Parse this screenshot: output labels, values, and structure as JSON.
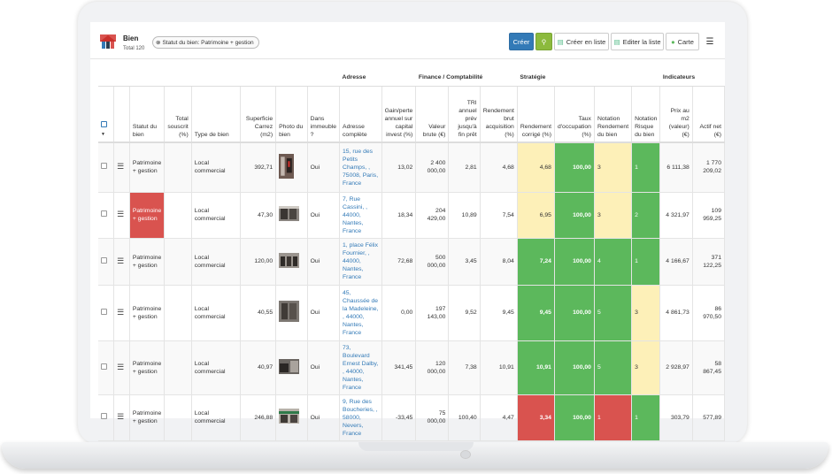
{
  "header": {
    "title": "Bien",
    "subtitle": "Total 120",
    "filter_chip": "Statut du bien: Patrimoine + gestion"
  },
  "toolbar": {
    "create_label": "Créer",
    "create_list_label": "Créer en liste",
    "edit_list_label": "Editer la liste",
    "map_label": "Carte"
  },
  "groups": {
    "address": "Adresse",
    "finance": "Finance / Comptabilité",
    "strategy": "Stratégie",
    "indicators": "Indicateurs"
  },
  "columns": {
    "status": "Statut du bien",
    "total_subscribed": "Total souscrit (%)",
    "type": "Type de bien",
    "area": "Superficie Carrez (m2)",
    "photo": "Photo du bien",
    "in_building": "Dans immeuble ?",
    "full_address": "Adresse complète",
    "gain_loss": "Gain/perte annuel sur capital invest (%)",
    "gross_value": "Valeur brute (€)",
    "irr": "TRI annuel prév jusqu'à fin prêt",
    "gross_yield": "Rendement brut acquisition (%)",
    "corrected_yield": "Rendement corrigé (%)",
    "occupancy": "Taux d'occupation (%)",
    "yield_rating": "Notation Rendement du bien",
    "risk_rating": "Notation Risque du bien",
    "price_m2": "Prix au m2 (valeur) (€)",
    "net_asset": "Actif net (€)"
  },
  "rows": [
    {
      "status": "Patrimoine + gestion",
      "type": "Local commercial",
      "area": "392,71",
      "in_building": "Oui",
      "address": "15, rue des Petits Champs, , 75008, Paris, France",
      "gain": "13,02",
      "value": "2 400 000,00",
      "irr": "2,81",
      "gross": "4,68",
      "corr": "4,68",
      "occ": "100,00",
      "yr": "3",
      "rr": "1",
      "pm2": "6 111,38",
      "net": "1 770 209,02"
    },
    {
      "status": "Patrimoine + gestion",
      "type": "Local commercial",
      "area": "47,30",
      "in_building": "Oui",
      "address": "7, Rue Cassini, , 44000, Nantes, France",
      "gain": "18,34",
      "value": "204 429,00",
      "irr": "10,89",
      "gross": "7,54",
      "corr": "6,95",
      "occ": "100,00",
      "yr": "3",
      "rr": "2",
      "pm2": "4 321,97",
      "net": "109 959,25"
    },
    {
      "status": "Patrimoine + gestion",
      "type": "Local commercial",
      "area": "120,00",
      "in_building": "Oui",
      "address": "1, place Félix Fournier, , 44000, Nantes, France",
      "gain": "72,68",
      "value": "500 000,00",
      "irr": "3,45",
      "gross": "8,04",
      "corr": "7,24",
      "occ": "100,00",
      "yr": "4",
      "rr": "1",
      "pm2": "4 166,67",
      "net": "371 122,25"
    },
    {
      "status": "Patrimoine + gestion",
      "type": "Local commercial",
      "area": "40,55",
      "in_building": "Oui",
      "address": "45, Chaussée de la Madeleine, , 44000, Nantes, France",
      "gain": "0,00",
      "value": "197 143,00",
      "irr": "9,52",
      "gross": "9,45",
      "corr": "9,45",
      "occ": "100,00",
      "yr": "5",
      "rr": "3",
      "pm2": "4 861,73",
      "net": "86 970,50"
    },
    {
      "status": "Patrimoine + gestion",
      "type": "Local commercial",
      "area": "40,97",
      "in_building": "Oui",
      "address": "73, Boulevard Ernest Dalby, , 44000, Nantes, France",
      "gain": "341,45",
      "value": "120 000,00",
      "irr": "7,38",
      "gross": "10,91",
      "corr": "10,91",
      "occ": "100,00",
      "yr": "5",
      "rr": "3",
      "pm2": "2 928,97",
      "net": "58 867,45"
    },
    {
      "status": "Patrimoine + gestion",
      "type": "Local commercial",
      "area": "246,88",
      "in_building": "Oui",
      "address": "9, Rue des Boucheries, , 58000, Nevers, France",
      "gain": "-33,45",
      "value": "75 000,00",
      "irr": "100,40",
      "gross": "4,47",
      "corr": "3,34",
      "occ": "100,00",
      "yr": "1",
      "rr": "1",
      "pm2": "303,79",
      "net": "577,89"
    }
  ],
  "colors": {
    "primary": "#337ab7",
    "search": "#8cba3d",
    "green": "#5cb85c",
    "red": "#d9534f",
    "yellow": "#fdf0b8"
  }
}
